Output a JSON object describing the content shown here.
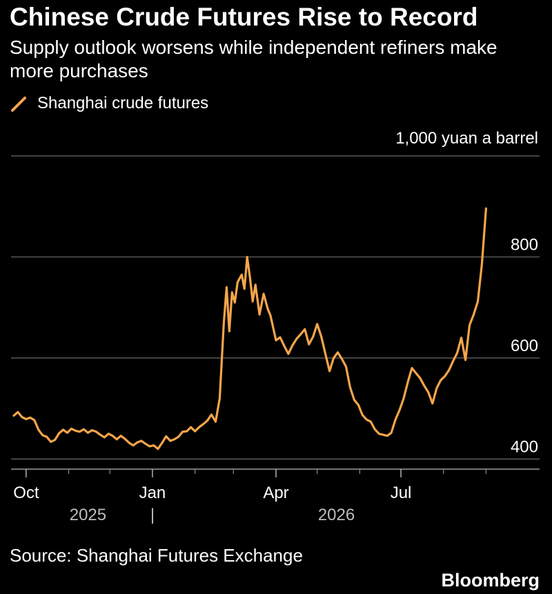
{
  "header": {
    "title": "Chinese Crude Futures Rise to Record",
    "subtitle": "Supply outlook worsens while independent refiners make more purchases"
  },
  "footer": {
    "source": "Source: Shanghai Futures Exchange",
    "brand": "Bloomberg"
  },
  "chart_data": {
    "type": "line",
    "title": "Chinese Crude Futures Rise to Record",
    "subtitle": "Supply outlook worsens while independent refiners make more purchases",
    "unit": "1,000 yuan a barrel",
    "ylim": [
      380,
      1000
    ],
    "yticks": [
      {
        "value": 400,
        "label": "400"
      },
      {
        "value": 600,
        "label": "600"
      },
      {
        "value": 800,
        "label": "800"
      }
    ],
    "gridline_values": [
      400,
      600,
      800,
      1000
    ],
    "xlim": [
      "2025-09-20",
      "2026-10-10"
    ],
    "xticks": [
      {
        "date": "2025-10-01",
        "label": "Oct"
      },
      {
        "date": "2026-01-01",
        "label": "Jan"
      },
      {
        "date": "2026-04-01",
        "label": "Apr"
      },
      {
        "date": "2026-07-01",
        "label": "Jul"
      }
    ],
    "minor_ticks": [
      "2025-11-01",
      "2025-12-01",
      "2026-02-01",
      "2026-03-01",
      "2026-05-01",
      "2026-06-01",
      "2026-08-01",
      "2026-09-01"
    ],
    "year_labels": [
      {
        "date": "2025-11-15",
        "label": "2025"
      },
      {
        "date": "2026-05-15",
        "label": "2026"
      }
    ],
    "year_divider": {
      "date": "2026-01-01",
      "label": "|"
    },
    "grid": true,
    "legend": "top-left",
    "series": [
      {
        "name": "Shanghai crude futures",
        "color": "#f5a54a",
        "points": [
          [
            "2025-09-22",
            486
          ],
          [
            "2025-09-25",
            493
          ],
          [
            "2025-09-28",
            483
          ],
          [
            "2025-10-01",
            479
          ],
          [
            "2025-10-04",
            482
          ],
          [
            "2025-10-07",
            477
          ],
          [
            "2025-10-10",
            458
          ],
          [
            "2025-10-13",
            447
          ],
          [
            "2025-10-16",
            444
          ],
          [
            "2025-10-19",
            434
          ],
          [
            "2025-10-22",
            438
          ],
          [
            "2025-10-25",
            451
          ],
          [
            "2025-10-28",
            458
          ],
          [
            "2025-10-31",
            452
          ],
          [
            "2025-11-03",
            460
          ],
          [
            "2025-11-06",
            456
          ],
          [
            "2025-11-09",
            454
          ],
          [
            "2025-11-12",
            459
          ],
          [
            "2025-11-15",
            452
          ],
          [
            "2025-11-18",
            457
          ],
          [
            "2025-11-21",
            454
          ],
          [
            "2025-11-24",
            448
          ],
          [
            "2025-11-27",
            443
          ],
          [
            "2025-11-30",
            450
          ],
          [
            "2025-12-03",
            446
          ],
          [
            "2025-12-06",
            439
          ],
          [
            "2025-12-09",
            446
          ],
          [
            "2025-12-12",
            440
          ],
          [
            "2025-12-15",
            432
          ],
          [
            "2025-12-18",
            427
          ],
          [
            "2025-12-21",
            433
          ],
          [
            "2025-12-24",
            436
          ],
          [
            "2025-12-27",
            430
          ],
          [
            "2025-12-30",
            425
          ],
          [
            "2026-01-02",
            427
          ],
          [
            "2026-01-05",
            420
          ],
          [
            "2026-01-08",
            432
          ],
          [
            "2026-01-11",
            445
          ],
          [
            "2026-01-14",
            436
          ],
          [
            "2026-01-17",
            439
          ],
          [
            "2026-01-20",
            444
          ],
          [
            "2026-01-23",
            454
          ],
          [
            "2026-01-26",
            455
          ],
          [
            "2026-01-29",
            463
          ],
          [
            "2026-02-01",
            455
          ],
          [
            "2026-02-04",
            463
          ],
          [
            "2026-02-07",
            469
          ],
          [
            "2026-02-10",
            476
          ],
          [
            "2026-02-13",
            488
          ],
          [
            "2026-02-16",
            474
          ],
          [
            "2026-02-19",
            520
          ],
          [
            "2026-02-22",
            670
          ],
          [
            "2026-02-24",
            740
          ],
          [
            "2026-02-26",
            653
          ],
          [
            "2026-02-28",
            730
          ],
          [
            "2026-03-02",
            710
          ],
          [
            "2026-03-04",
            750
          ],
          [
            "2026-03-07",
            765
          ],
          [
            "2026-03-09",
            737
          ],
          [
            "2026-03-11",
            800
          ],
          [
            "2026-03-13",
            760
          ],
          [
            "2026-03-15",
            712
          ],
          [
            "2026-03-17",
            745
          ],
          [
            "2026-03-20",
            686
          ],
          [
            "2026-03-23",
            727
          ],
          [
            "2026-03-26",
            697
          ],
          [
            "2026-03-28",
            684
          ],
          [
            "2026-04-01",
            635
          ],
          [
            "2026-04-04",
            641
          ],
          [
            "2026-04-07",
            624
          ],
          [
            "2026-04-10",
            608
          ],
          [
            "2026-04-13",
            625
          ],
          [
            "2026-04-16",
            638
          ],
          [
            "2026-04-19",
            647
          ],
          [
            "2026-04-22",
            657
          ],
          [
            "2026-04-25",
            627
          ],
          [
            "2026-04-28",
            642
          ],
          [
            "2026-05-01",
            667
          ],
          [
            "2026-05-04",
            642
          ],
          [
            "2026-05-07",
            608
          ],
          [
            "2026-05-10",
            574
          ],
          [
            "2026-05-13",
            600
          ],
          [
            "2026-05-16",
            611
          ],
          [
            "2026-05-19",
            598
          ],
          [
            "2026-05-22",
            583
          ],
          [
            "2026-05-25",
            542
          ],
          [
            "2026-05-28",
            517
          ],
          [
            "2026-05-31",
            507
          ],
          [
            "2026-06-03",
            487
          ],
          [
            "2026-06-06",
            478
          ],
          [
            "2026-06-09",
            474
          ],
          [
            "2026-06-12",
            459
          ],
          [
            "2026-06-15",
            450
          ],
          [
            "2026-06-18",
            448
          ],
          [
            "2026-06-21",
            446
          ],
          [
            "2026-06-24",
            452
          ],
          [
            "2026-06-27",
            478
          ],
          [
            "2026-06-30",
            497
          ],
          [
            "2026-07-03",
            520
          ],
          [
            "2026-07-06",
            552
          ],
          [
            "2026-07-09",
            580
          ],
          [
            "2026-07-12",
            570
          ],
          [
            "2026-07-15",
            560
          ],
          [
            "2026-07-18",
            545
          ],
          [
            "2026-07-21",
            532
          ],
          [
            "2026-07-24",
            510
          ],
          [
            "2026-07-27",
            540
          ],
          [
            "2026-07-30",
            556
          ],
          [
            "2026-08-02",
            564
          ],
          [
            "2026-08-05",
            576
          ],
          [
            "2026-08-08",
            594
          ],
          [
            "2026-08-11",
            610
          ],
          [
            "2026-08-14",
            640
          ],
          [
            "2026-08-17",
            596
          ],
          [
            "2026-08-20",
            665
          ],
          [
            "2026-08-23",
            686
          ],
          [
            "2026-08-26",
            712
          ],
          [
            "2026-08-29",
            786
          ],
          [
            "2026-09-01",
            896
          ]
        ]
      }
    ]
  }
}
